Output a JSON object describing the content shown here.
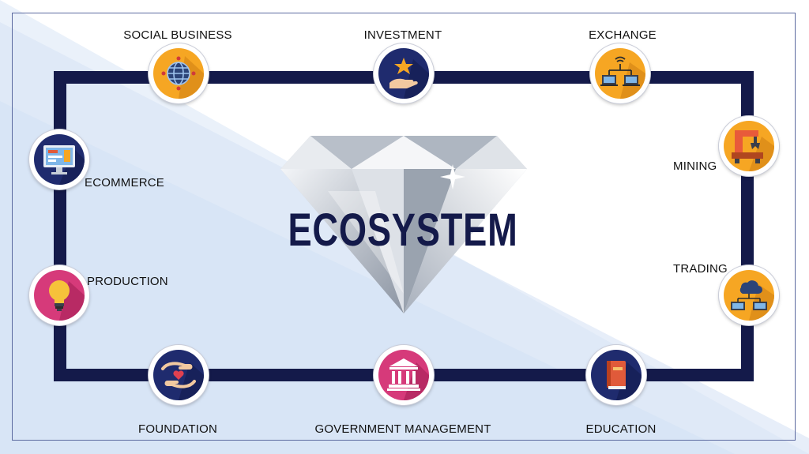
{
  "title": "ECOSYSTEM",
  "colors": {
    "loop": "#141a4a",
    "title": "#141a4a",
    "orange": "#f6a623",
    "navy": "#1f2b6e",
    "pink": "#d63a7a",
    "band_light": "#d7e4f6"
  },
  "nodes": [
    {
      "id": "social-business",
      "label": "SOCIAL BUSINESS",
      "icon": "globe-icon"
    },
    {
      "id": "investment",
      "label": "INVESTMENT",
      "icon": "hand-star-icon"
    },
    {
      "id": "exchange",
      "label": "EXCHANGE",
      "icon": "network-computers-icon"
    },
    {
      "id": "mining",
      "label": "MINING",
      "icon": "robot-arm-icon"
    },
    {
      "id": "trading",
      "label": "TRADING",
      "icon": "cloud-network-icon"
    },
    {
      "id": "education",
      "label": "EDUCATION",
      "icon": "book-icon"
    },
    {
      "id": "government-management",
      "label": "GOVERNMENT MANAGEMENT",
      "icon": "bank-building-icon"
    },
    {
      "id": "foundation",
      "label": "FOUNDATION",
      "icon": "hands-heart-icon"
    },
    {
      "id": "production",
      "label": "PRODUCTION",
      "icon": "lightbulb-icon"
    },
    {
      "id": "ecommerce",
      "label": "ECOMMERCE",
      "icon": "monitor-icon"
    }
  ]
}
